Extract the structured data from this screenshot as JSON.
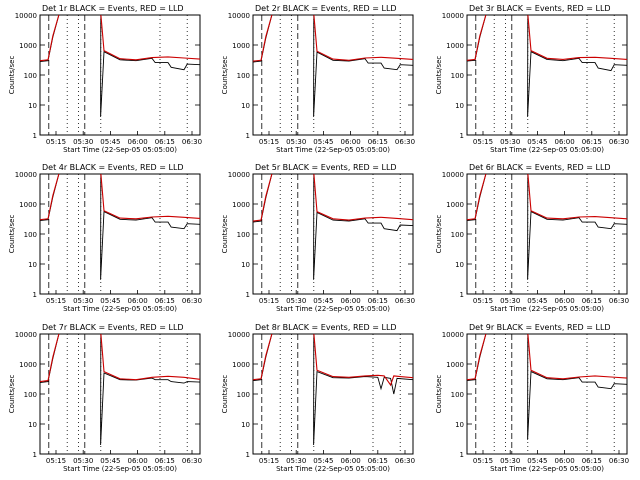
{
  "chart_data": [
    {
      "type": "line",
      "title": "Det 1r BLACK = Events, RED = LLD",
      "xlabel": "Start Time (22-Sep-05 05:05:00)",
      "ylabel": "Counts/sec",
      "y_scale": "log",
      "ylim": [
        1,
        10000
      ],
      "y_ticks": [
        1,
        10,
        100,
        1000,
        10000
      ],
      "y_tick_labels": [
        "1",
        "10",
        "100",
        "1000",
        "10000"
      ],
      "x_tick_labels": [
        "05:15",
        "05:30",
        "05:45",
        "06:00",
        "06:15",
        "06:30"
      ],
      "series": [
        {
          "color": "#000000",
          "x": [
            0,
            0.05,
            0.08,
            0.12,
            0.2,
            0.28,
            0.38,
            0.379,
            0.4,
            0.5,
            0.6,
            0.7,
            0.72,
            0.8,
            0.82,
            0.9,
            0.92,
            1.0
          ],
          "y": [
            280,
            300,
            1800,
            11000,
            11000,
            11000,
            11000,
            4,
            600,
            320,
            300,
            360,
            260,
            260,
            180,
            150,
            230,
            220
          ]
        },
        {
          "color": "#cc0000",
          "x": [
            0,
            0.05,
            0.08,
            0.12,
            0.2,
            0.28,
            0.38,
            0.4,
            0.5,
            0.6,
            0.7,
            0.8,
            0.9,
            1.0
          ],
          "y": [
            300,
            320,
            2000,
            11000,
            11000,
            11000,
            11000,
            650,
            350,
            320,
            380,
            400,
            370,
            340
          ]
        }
      ]
    },
    {
      "type": "line",
      "title": "Det 2r BLACK = Events, RED = LLD",
      "xlabel": "Start Time (22-Sep-05 05:05:00)",
      "ylabel": "Counts/sec",
      "y_scale": "log",
      "ylim": [
        1,
        10000
      ],
      "y_ticks": [
        1,
        10,
        100,
        1000,
        10000
      ],
      "y_tick_labels": [
        "1",
        "10",
        "100",
        "1000",
        "10000"
      ],
      "x_tick_labels": [
        "05:15",
        "05:30",
        "05:45",
        "06:00",
        "06:15",
        "06:30"
      ],
      "series": [
        {
          "color": "#000000",
          "x": [
            0,
            0.05,
            0.08,
            0.12,
            0.2,
            0.28,
            0.38,
            0.379,
            0.4,
            0.5,
            0.6,
            0.7,
            0.72,
            0.8,
            0.82,
            0.9,
            0.92,
            1.0
          ],
          "y": [
            270,
            290,
            1700,
            11000,
            11000,
            11000,
            11000,
            4,
            580,
            310,
            290,
            350,
            250,
            250,
            170,
            150,
            220,
            210
          ]
        },
        {
          "color": "#cc0000",
          "x": [
            0,
            0.05,
            0.08,
            0.12,
            0.2,
            0.28,
            0.38,
            0.4,
            0.5,
            0.6,
            0.7,
            0.8,
            0.9,
            1.0
          ],
          "y": [
            290,
            310,
            1900,
            11000,
            11000,
            11000,
            11000,
            620,
            340,
            310,
            370,
            390,
            360,
            330
          ]
        }
      ]
    },
    {
      "type": "line",
      "title": "Det 3r BLACK = Events, RED = LLD",
      "xlabel": "Start Time (22-Sep-05 05:05:00)",
      "ylabel": "Counts/sec",
      "y_scale": "log",
      "ylim": [
        1,
        10000
      ],
      "y_ticks": [
        1,
        10,
        100,
        1000,
        10000
      ],
      "y_tick_labels": [
        "1",
        "10",
        "100",
        "1000",
        "10000"
      ],
      "x_tick_labels": [
        "05:15",
        "05:30",
        "05:45",
        "06:00",
        "06:15",
        "06:30"
      ],
      "series": [
        {
          "color": "#000000",
          "x": [
            0,
            0.05,
            0.08,
            0.12,
            0.2,
            0.28,
            0.38,
            0.379,
            0.4,
            0.5,
            0.6,
            0.7,
            0.72,
            0.8,
            0.82,
            0.9,
            0.92,
            1.0
          ],
          "y": [
            290,
            310,
            1800,
            11000,
            11000,
            11000,
            11000,
            4,
            600,
            330,
            300,
            360,
            260,
            260,
            170,
            140,
            220,
            210
          ]
        },
        {
          "color": "#cc0000",
          "x": [
            0,
            0.05,
            0.08,
            0.12,
            0.2,
            0.28,
            0.38,
            0.4,
            0.5,
            0.6,
            0.7,
            0.8,
            0.9,
            1.0
          ],
          "y": [
            310,
            330,
            2000,
            11000,
            11000,
            11000,
            11000,
            650,
            360,
            330,
            380,
            390,
            360,
            330
          ]
        }
      ]
    },
    {
      "type": "line",
      "title": "Det 4r BLACK = Events, RED = LLD",
      "xlabel": "Start Time (22-Sep-05 05:05:00)",
      "ylabel": "Counts/sec",
      "y_scale": "log",
      "ylim": [
        1,
        10000
      ],
      "y_ticks": [
        1,
        10,
        100,
        1000,
        10000
      ],
      "y_tick_labels": [
        "1",
        "10",
        "100",
        "1000",
        "10000"
      ],
      "x_tick_labels": [
        "05:15",
        "05:30",
        "05:45",
        "06:00",
        "06:15",
        "06:30"
      ],
      "series": [
        {
          "color": "#000000",
          "x": [
            0,
            0.05,
            0.08,
            0.12,
            0.2,
            0.28,
            0.38,
            0.379,
            0.4,
            0.5,
            0.6,
            0.7,
            0.72,
            0.8,
            0.82,
            0.9,
            0.92,
            1.0
          ],
          "y": [
            280,
            300,
            1700,
            11000,
            11000,
            11000,
            11000,
            3,
            560,
            310,
            290,
            350,
            250,
            250,
            170,
            150,
            220,
            210
          ]
        },
        {
          "color": "#cc0000",
          "x": [
            0,
            0.05,
            0.08,
            0.12,
            0.2,
            0.28,
            0.38,
            0.4,
            0.5,
            0.6,
            0.7,
            0.8,
            0.9,
            1.0
          ],
          "y": [
            300,
            320,
            1900,
            11000,
            11000,
            11000,
            11000,
            600,
            340,
            320,
            370,
            390,
            360,
            330
          ]
        }
      ]
    },
    {
      "type": "line",
      "title": "Det 5r BLACK = Events, RED = LLD",
      "xlabel": "Start Time (22-Sep-05 05:05:00)",
      "ylabel": "Counts/sec",
      "y_scale": "log",
      "ylim": [
        1,
        10000
      ],
      "y_ticks": [
        1,
        10,
        100,
        1000,
        10000
      ],
      "y_tick_labels": [
        "1",
        "10",
        "100",
        "1000",
        "10000"
      ],
      "x_tick_labels": [
        "05:15",
        "05:30",
        "05:45",
        "06:00",
        "06:15",
        "06:30"
      ],
      "series": [
        {
          "color": "#000000",
          "x": [
            0,
            0.05,
            0.08,
            0.12,
            0.2,
            0.28,
            0.38,
            0.379,
            0.4,
            0.5,
            0.6,
            0.7,
            0.72,
            0.8,
            0.82,
            0.9,
            0.92,
            1.0
          ],
          "y": [
            250,
            270,
            1600,
            11000,
            11000,
            11000,
            11000,
            3,
            520,
            290,
            270,
            320,
            230,
            230,
            150,
            130,
            200,
            190
          ]
        },
        {
          "color": "#cc0000",
          "x": [
            0,
            0.05,
            0.08,
            0.12,
            0.2,
            0.28,
            0.38,
            0.4,
            0.5,
            0.6,
            0.7,
            0.8,
            0.9,
            1.0
          ],
          "y": [
            270,
            290,
            1800,
            11000,
            11000,
            11000,
            11000,
            560,
            320,
            290,
            340,
            360,
            330,
            300
          ]
        }
      ]
    },
    {
      "type": "line",
      "title": "Det 6r BLACK = Events, RED = LLD",
      "xlabel": "Start Time (22-Sep-05 05:05:00)",
      "ylabel": "Counts/sec",
      "y_scale": "log",
      "ylim": [
        1,
        10000
      ],
      "y_ticks": [
        1,
        10,
        100,
        1000,
        10000
      ],
      "y_tick_labels": [
        "1",
        "10",
        "100",
        "1000",
        "10000"
      ],
      "x_tick_labels": [
        "05:15",
        "05:30",
        "05:45",
        "06:00",
        "06:15",
        "06:30"
      ],
      "series": [
        {
          "color": "#000000",
          "x": [
            0,
            0.05,
            0.08,
            0.12,
            0.2,
            0.28,
            0.38,
            0.379,
            0.4,
            0.5,
            0.6,
            0.7,
            0.72,
            0.8,
            0.82,
            0.9,
            0.92,
            1.0
          ],
          "y": [
            280,
            300,
            1700,
            11000,
            11000,
            11000,
            11000,
            3,
            560,
            310,
            290,
            350,
            250,
            250,
            170,
            150,
            220,
            210
          ]
        },
        {
          "color": "#cc0000",
          "x": [
            0,
            0.05,
            0.08,
            0.12,
            0.2,
            0.28,
            0.38,
            0.4,
            0.5,
            0.6,
            0.7,
            0.8,
            0.9,
            1.0
          ],
          "y": [
            300,
            320,
            1900,
            11000,
            11000,
            11000,
            11000,
            600,
            340,
            320,
            370,
            380,
            350,
            320
          ]
        }
      ]
    },
    {
      "type": "line",
      "title": "Det 7r BLACK = Events, RED = LLD",
      "xlabel": "Start Time (22-Sep-05 05:05:00)",
      "ylabel": "Counts/sec",
      "y_scale": "log",
      "ylim": [
        1,
        10000
      ],
      "y_ticks": [
        1,
        10,
        100,
        1000,
        10000
      ],
      "y_tick_labels": [
        "1",
        "10",
        "100",
        "1000",
        "10000"
      ],
      "x_tick_labels": [
        "05:15",
        "05:30",
        "05:45",
        "06:00",
        "06:15",
        "06:30"
      ],
      "series": [
        {
          "color": "#000000",
          "x": [
            0,
            0.05,
            0.08,
            0.12,
            0.2,
            0.28,
            0.38,
            0.379,
            0.4,
            0.5,
            0.6,
            0.7,
            0.72,
            0.8,
            0.82,
            0.9,
            0.92,
            1.0
          ],
          "y": [
            240,
            260,
            1500,
            11000,
            11000,
            11000,
            11000,
            2,
            500,
            300,
            290,
            340,
            300,
            300,
            260,
            230,
            260,
            250
          ]
        },
        {
          "color": "#cc0000",
          "x": [
            0,
            0.05,
            0.08,
            0.12,
            0.2,
            0.28,
            0.38,
            0.4,
            0.5,
            0.6,
            0.7,
            0.8,
            0.9,
            1.0
          ],
          "y": [
            260,
            280,
            1700,
            11000,
            11000,
            11000,
            11000,
            560,
            320,
            300,
            360,
            390,
            360,
            310
          ]
        }
      ]
    },
    {
      "type": "line",
      "title": "Det 8r BLACK = Events, RED = LLD",
      "xlabel": "Start Time (22-Sep-05 05:05:00)",
      "ylabel": "Counts/sec",
      "y_scale": "log",
      "ylim": [
        1,
        10000
      ],
      "y_ticks": [
        1,
        10,
        100,
        1000,
        10000
      ],
      "y_tick_labels": [
        "1",
        "10",
        "100",
        "1000",
        "10000"
      ],
      "x_tick_labels": [
        "05:15",
        "05:30",
        "05:45",
        "06:00",
        "06:15",
        "06:30"
      ],
      "series": [
        {
          "color": "#000000",
          "x": [
            0,
            0.05,
            0.08,
            0.12,
            0.2,
            0.28,
            0.38,
            0.379,
            0.4,
            0.5,
            0.6,
            0.7,
            0.78,
            0.8,
            0.82,
            0.86,
            0.88,
            0.9,
            1.0
          ],
          "y": [
            280,
            300,
            1700,
            11000,
            11000,
            11000,
            11000,
            2,
            560,
            350,
            340,
            380,
            360,
            150,
            360,
            330,
            100,
            330,
            300
          ]
        },
        {
          "color": "#cc0000",
          "x": [
            0,
            0.05,
            0.08,
            0.12,
            0.2,
            0.28,
            0.38,
            0.4,
            0.5,
            0.6,
            0.7,
            0.78,
            0.82,
            0.86,
            0.88,
            0.92,
            1.0
          ],
          "y": [
            300,
            320,
            1900,
            11000,
            11000,
            11000,
            11000,
            620,
            380,
            360,
            400,
            420,
            400,
            200,
            400,
            380,
            350
          ]
        }
      ]
    },
    {
      "type": "line",
      "title": "Det 9r BLACK = Events, RED = LLD",
      "xlabel": "Start Time (22-Sep-05 05:05:00)",
      "ylabel": "Counts/sec",
      "y_scale": "log",
      "ylim": [
        1,
        10000
      ],
      "y_ticks": [
        1,
        10,
        100,
        1000,
        10000
      ],
      "y_tick_labels": [
        "1",
        "10",
        "100",
        "1000",
        "10000"
      ],
      "x_tick_labels": [
        "05:15",
        "05:30",
        "05:45",
        "06:00",
        "06:15",
        "06:30"
      ],
      "series": [
        {
          "color": "#000000",
          "x": [
            0,
            0.05,
            0.08,
            0.12,
            0.2,
            0.28,
            0.38,
            0.379,
            0.4,
            0.5,
            0.6,
            0.7,
            0.72,
            0.8,
            0.82,
            0.9,
            0.92,
            1.0
          ],
          "y": [
            280,
            300,
            1700,
            11000,
            11000,
            11000,
            11000,
            3,
            560,
            320,
            300,
            350,
            250,
            250,
            170,
            150,
            220,
            210
          ]
        },
        {
          "color": "#cc0000",
          "x": [
            0,
            0.05,
            0.08,
            0.12,
            0.2,
            0.28,
            0.38,
            0.4,
            0.5,
            0.6,
            0.7,
            0.8,
            0.9,
            1.0
          ],
          "y": [
            300,
            320,
            1900,
            11000,
            11000,
            11000,
            11000,
            620,
            350,
            320,
            370,
            400,
            370,
            340
          ]
        }
      ]
    }
  ]
}
